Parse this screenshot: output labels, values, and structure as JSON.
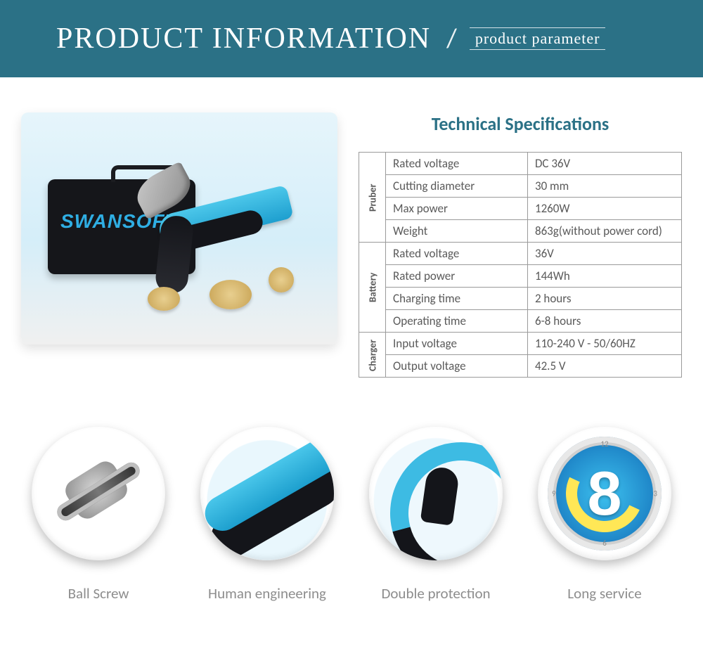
{
  "colors": {
    "banner_bg": "#2b7186",
    "banner_text": "#ffffff",
    "spec_title": "#2b7186",
    "border": "#9a9a9a",
    "cell_text": "#5a5a5a",
    "feature_label": "#8d8d8d",
    "brand_blue": "#2faee3"
  },
  "header": {
    "title": "PRODUCT INFORMATION",
    "subtitle": "product parameter"
  },
  "product_brand": "SWANSOFT",
  "spec_title": "Technical Specifications",
  "spec_groups": [
    {
      "name": "Pruber",
      "rows": [
        {
          "param": "Rated voltage",
          "value": "DC 36V"
        },
        {
          "param": "Cutting diameter",
          "value": "30 mm"
        },
        {
          "param": "Max power",
          "value": "1260W"
        },
        {
          "param": "Weight",
          "value": "863g(without power cord)"
        }
      ]
    },
    {
      "name": "Battery",
      "rows": [
        {
          "param": "Rated voltage",
          "value": "36V"
        },
        {
          "param": "Rated power",
          "value": "144Wh"
        },
        {
          "param": "Charging time",
          "value": "2 hours"
        },
        {
          "param": "Operating time",
          "value": "6-8 hours"
        }
      ]
    },
    {
      "name": "Charger",
      "rows": [
        {
          "param": "Input voltage",
          "value": "110-240 V - 50/60HZ"
        },
        {
          "param": "Output voltage",
          "value": "42.5 V"
        }
      ]
    }
  ],
  "features": [
    {
      "label": "Ball Screw"
    },
    {
      "label": "Human engineering"
    },
    {
      "label": "Double protection"
    },
    {
      "label": "Long service"
    }
  ],
  "clock": {
    "digit": "8",
    "ticks": [
      "12",
      "3",
      "6",
      "9"
    ]
  }
}
